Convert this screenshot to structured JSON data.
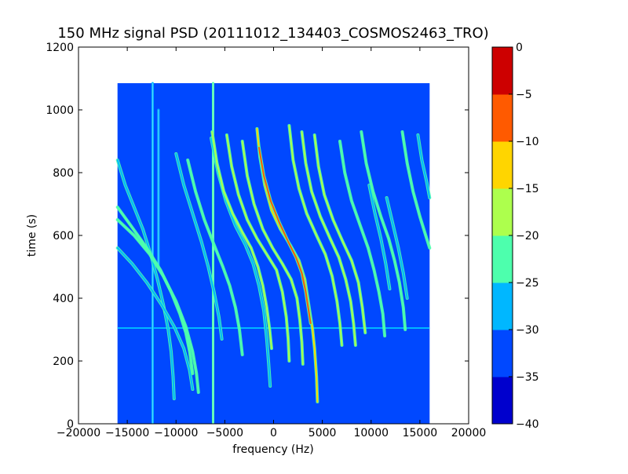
{
  "chart_data": {
    "type": "heatmap",
    "title": "150 MHz signal PSD (20111012_134403_COSMOS2463_TRO)",
    "xlabel": "frequency (Hz)",
    "ylabel": "time (s)",
    "xlim": [
      -20000,
      20000
    ],
    "ylim": [
      0,
      1200
    ],
    "xticks": [
      -20000,
      -15000,
      -10000,
      -5000,
      0,
      5000,
      10000,
      15000,
      20000
    ],
    "xtick_labels": [
      "−20000",
      "−15000",
      "−10000",
      "−5000",
      "0",
      "5000",
      "10000",
      "15000",
      "20000"
    ],
    "yticks": [
      0,
      200,
      400,
      600,
      800,
      1000,
      1200
    ],
    "ytick_labels": [
      "0",
      "200",
      "400",
      "600",
      "800",
      "1000",
      "1200"
    ],
    "data_extent": {
      "x": [
        -16000,
        16000
      ],
      "y": [
        0,
        1085
      ]
    },
    "background_level": -34,
    "colorbar": {
      "levels": [
        -40,
        -35,
        -30,
        -25,
        -20,
        -15,
        -10,
        -5,
        0
      ],
      "tick_labels": [
        "−40",
        "−35",
        "−30",
        "−25",
        "−20",
        "−15",
        "−10",
        "−5",
        "0"
      ],
      "colors": [
        "#0000cd",
        "#0048ff",
        "#00b7ff",
        "#4dffad",
        "#adff4d",
        "#ffd500",
        "#ff5a00",
        "#cd0000"
      ]
    },
    "horizontal_line": {
      "y": 305,
      "level": -27
    },
    "vertical_lines": [
      {
        "x": -12400,
        "y": [
          0,
          1085
        ],
        "level": -26
      },
      {
        "x": -6200,
        "y": [
          0,
          1085
        ],
        "level": -22
      },
      {
        "x": -11800,
        "y": [
          500,
          1000
        ],
        "level": -30
      }
    ],
    "traces": [
      {
        "level": -26,
        "points": [
          [
            -16000,
            840
          ],
          [
            -15200,
            760
          ],
          [
            -14300,
            690
          ],
          [
            -13400,
            620
          ],
          [
            -12600,
            540
          ],
          [
            -11900,
            460
          ],
          [
            -11300,
            380
          ],
          [
            -10800,
            300
          ],
          [
            -10500,
            230
          ],
          [
            -10300,
            150
          ],
          [
            -10200,
            80
          ]
        ]
      },
      {
        "level": -25,
        "points": [
          [
            -16000,
            690
          ],
          [
            -14600,
            630
          ],
          [
            -13000,
            560
          ],
          [
            -11600,
            490
          ],
          [
            -10500,
            420
          ],
          [
            -9600,
            350
          ],
          [
            -9000,
            290
          ],
          [
            -8600,
            230
          ],
          [
            -8300,
            160
          ]
        ]
      },
      {
        "level": -25,
        "points": [
          [
            -16000,
            650
          ],
          [
            -14300,
            600
          ],
          [
            -12700,
            540
          ],
          [
            -11300,
            470
          ],
          [
            -10000,
            390
          ],
          [
            -9000,
            310
          ],
          [
            -8300,
            230
          ],
          [
            -7900,
            160
          ],
          [
            -7700,
            100
          ]
        ]
      },
      {
        "level": -26,
        "points": [
          [
            -16000,
            560
          ],
          [
            -14500,
            510
          ],
          [
            -13000,
            450
          ],
          [
            -11500,
            380
          ],
          [
            -10200,
            310
          ],
          [
            -9200,
            240
          ],
          [
            -8600,
            170
          ],
          [
            -8300,
            110
          ]
        ]
      },
      {
        "level": -26,
        "points": [
          [
            -10000,
            860
          ],
          [
            -9200,
            760
          ],
          [
            -8300,
            670
          ],
          [
            -7400,
            580
          ],
          [
            -6700,
            500
          ],
          [
            -6100,
            420
          ],
          [
            -5600,
            340
          ],
          [
            -5300,
            270
          ]
        ]
      },
      {
        "level": -25,
        "points": [
          [
            -8800,
            840
          ],
          [
            -8000,
            740
          ],
          [
            -7100,
            650
          ],
          [
            -6100,
            570
          ],
          [
            -5200,
            500
          ],
          [
            -4500,
            440
          ],
          [
            -3900,
            370
          ],
          [
            -3500,
            300
          ],
          [
            -3200,
            220
          ]
        ]
      },
      {
        "level": -26,
        "points": [
          [
            -6400,
            910
          ],
          [
            -5700,
            800
          ],
          [
            -4900,
            710
          ],
          [
            -3900,
            630
          ],
          [
            -2900,
            570
          ],
          [
            -2100,
            510
          ],
          [
            -1500,
            440
          ],
          [
            -1000,
            360
          ],
          [
            -700,
            270
          ],
          [
            -500,
            190
          ],
          [
            -350,
            120
          ]
        ]
      },
      {
        "level": -18,
        "points": [
          [
            -6300,
            930
          ],
          [
            -5800,
            830
          ],
          [
            -5100,
            740
          ],
          [
            -4200,
            670
          ],
          [
            -3200,
            610
          ],
          [
            -2300,
            560
          ],
          [
            -1600,
            500
          ],
          [
            -1100,
            440
          ],
          [
            -700,
            370
          ],
          [
            -400,
            300
          ],
          [
            -200,
            240
          ]
        ]
      },
      {
        "level": -19,
        "points": [
          [
            -4800,
            920
          ],
          [
            -4300,
            820
          ],
          [
            -3600,
            730
          ],
          [
            -2700,
            650
          ],
          [
            -1700,
            590
          ],
          [
            -700,
            540
          ],
          [
            300,
            490
          ],
          [
            900,
            420
          ],
          [
            1300,
            340
          ],
          [
            1500,
            270
          ],
          [
            1600,
            200
          ]
        ]
      },
      {
        "level": -18,
        "points": [
          [
            -3200,
            900
          ],
          [
            -2700,
            790
          ],
          [
            -2000,
            700
          ],
          [
            -1100,
            620
          ],
          [
            -100,
            560
          ],
          [
            900,
            510
          ],
          [
            1800,
            460
          ],
          [
            2400,
            400
          ],
          [
            2700,
            330
          ],
          [
            2900,
            260
          ],
          [
            3000,
            190
          ]
        ]
      },
      {
        "level": -12,
        "points": [
          [
            -1700,
            940
          ],
          [
            -1400,
            850
          ],
          [
            -900,
            760
          ],
          [
            -200,
            680
          ],
          [
            700,
            620
          ],
          [
            1700,
            570
          ],
          [
            2600,
            520
          ],
          [
            3200,
            460
          ],
          [
            3500,
            400
          ],
          [
            3800,
            340
          ],
          [
            4000,
            300
          ],
          [
            4200,
            240
          ],
          [
            4400,
            150
          ],
          [
            4500,
            70
          ]
        ]
      },
      {
        "level": -8,
        "points": [
          [
            -1500,
            880
          ],
          [
            -1000,
            790
          ],
          [
            -300,
            710
          ],
          [
            600,
            640
          ],
          [
            1500,
            580
          ],
          [
            2300,
            530
          ],
          [
            2900,
            480
          ],
          [
            3300,
            420
          ],
          [
            3600,
            360
          ],
          [
            3800,
            320
          ]
        ]
      },
      {
        "level": -20,
        "points": [
          [
            1600,
            950
          ],
          [
            2000,
            840
          ],
          [
            2600,
            750
          ],
          [
            3400,
            670
          ],
          [
            4400,
            600
          ],
          [
            5300,
            540
          ],
          [
            6000,
            470
          ],
          [
            6500,
            390
          ],
          [
            6800,
            320
          ],
          [
            7000,
            250
          ]
        ]
      },
      {
        "level": -18,
        "points": [
          [
            2900,
            930
          ],
          [
            3300,
            830
          ],
          [
            3900,
            740
          ],
          [
            4800,
            660
          ],
          [
            5800,
            590
          ],
          [
            6700,
            530
          ],
          [
            7400,
            460
          ],
          [
            7900,
            390
          ],
          [
            8200,
            320
          ],
          [
            8400,
            250
          ]
        ]
      },
      {
        "level": -18,
        "points": [
          [
            4200,
            920
          ],
          [
            4600,
            820
          ],
          [
            5200,
            730
          ],
          [
            6100,
            650
          ],
          [
            7100,
            580
          ],
          [
            8000,
            520
          ],
          [
            8700,
            450
          ],
          [
            9100,
            370
          ],
          [
            9400,
            290
          ]
        ]
      },
      {
        "level": -24,
        "points": [
          [
            6800,
            900
          ],
          [
            7300,
            800
          ],
          [
            8000,
            710
          ],
          [
            8900,
            630
          ],
          [
            9700,
            560
          ],
          [
            10300,
            490
          ],
          [
            10800,
            420
          ],
          [
            11200,
            350
          ],
          [
            11400,
            280
          ]
        ]
      },
      {
        "level": -24,
        "points": [
          [
            9000,
            930
          ],
          [
            9500,
            830
          ],
          [
            10200,
            740
          ],
          [
            11000,
            660
          ],
          [
            11800,
            590
          ],
          [
            12400,
            520
          ],
          [
            12900,
            450
          ],
          [
            13300,
            370
          ],
          [
            13500,
            300
          ]
        ]
      },
      {
        "level": -24,
        "points": [
          [
            13200,
            930
          ],
          [
            13700,
            830
          ],
          [
            14300,
            740
          ],
          [
            15000,
            660
          ],
          [
            15600,
            600
          ],
          [
            16000,
            560
          ]
        ]
      },
      {
        "level": -27,
        "points": [
          [
            14800,
            920
          ],
          [
            15200,
            840
          ],
          [
            15700,
            770
          ],
          [
            16000,
            720
          ]
        ]
      },
      {
        "level": -28,
        "points": [
          [
            11600,
            720
          ],
          [
            12200,
            640
          ],
          [
            12800,
            560
          ],
          [
            13300,
            480
          ],
          [
            13700,
            400
          ]
        ]
      },
      {
        "level": -28,
        "points": [
          [
            9800,
            760
          ],
          [
            10400,
            670
          ],
          [
            11000,
            590
          ],
          [
            11500,
            510
          ],
          [
            11900,
            430
          ]
        ]
      }
    ]
  }
}
